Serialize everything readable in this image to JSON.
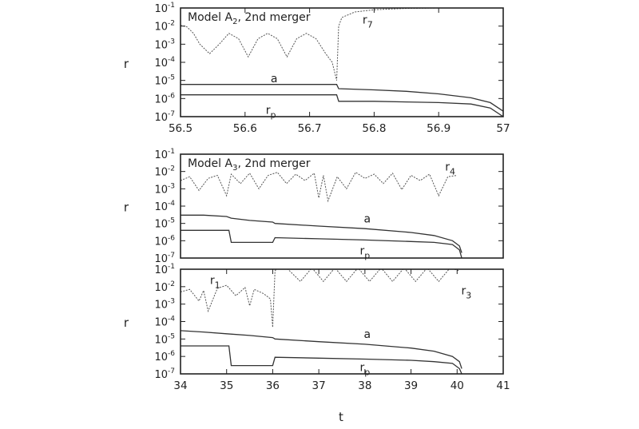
{
  "figure": {
    "xlabel": "t"
  },
  "chart_data": [
    {
      "type": "line",
      "title": "Model A",
      "title_sub": "2",
      "title_rest": ", 2nd merger",
      "ylabel": "r",
      "xlim": [
        56.5,
        57
      ],
      "xticks": [
        56.5,
        56.6,
        56.7,
        56.8,
        56.9,
        57
      ],
      "xtick_labels": [
        "56.5",
        "56.6",
        "56.7",
        "56.8",
        "56.9",
        "57"
      ],
      "ylim_log10": [
        -7,
        -1
      ],
      "ytick_exponents": [
        -1,
        -2,
        -3,
        -4,
        -5,
        -6,
        -7
      ],
      "ytick_base": "10",
      "y_scale": "log",
      "grid": false,
      "series": [
        {
          "name": "r7",
          "label_main": "r",
          "label_sub": "7",
          "style": "dashed",
          "x": [
            56.5,
            56.51,
            56.52,
            56.53,
            56.545,
            56.56,
            56.575,
            56.59,
            56.605,
            56.62,
            56.635,
            56.65,
            56.665,
            56.68,
            56.695,
            56.71,
            56.725,
            56.735,
            56.742,
            56.745,
            56.75,
            56.77,
            56.8,
            56.85,
            56.9,
            56.95,
            57
          ],
          "y": [
            0.011,
            0.009,
            0.004,
            0.001,
            0.0003,
            0.001,
            0.004,
            0.002,
            0.0002,
            0.002,
            0.004,
            0.002,
            0.0002,
            0.002,
            0.004,
            0.002,
            0.0003,
            0.0001,
            1e-05,
            0.01,
            0.03,
            0.06,
            0.08,
            0.095,
            0.1,
            0.1,
            0.1
          ]
        },
        {
          "name": "a",
          "label_main": "a",
          "label_sub": "",
          "style": "solid",
          "x": [
            56.5,
            56.6,
            56.7,
            56.742,
            56.745,
            56.8,
            56.85,
            56.9,
            56.95,
            56.98,
            57
          ],
          "y": [
            6e-06,
            6e-06,
            6e-06,
            6e-06,
            3.5e-06,
            3e-06,
            2.5e-06,
            1.8e-06,
            1.1e-06,
            6e-07,
            2e-07
          ]
        },
        {
          "name": "rp",
          "label_main": "r",
          "label_sub": "p",
          "style": "solid",
          "x": [
            56.5,
            56.6,
            56.7,
            56.742,
            56.745,
            56.8,
            56.85,
            56.9,
            56.95,
            56.98,
            57
          ],
          "y": [
            1.6e-06,
            1.6e-06,
            1.6e-06,
            1.6e-06,
            7e-07,
            7e-07,
            6.5e-07,
            6e-07,
            5e-07,
            3e-07,
            1e-07
          ]
        }
      ]
    },
    {
      "type": "line",
      "title": "Model A",
      "title_sub": "3",
      "title_rest": ", 2nd merger",
      "ylabel": "r",
      "xlim": [
        34,
        41
      ],
      "ylim_log10": [
        -7,
        -1
      ],
      "ytick_exponents": [
        -1,
        -2,
        -3,
        -4,
        -5,
        -6,
        -7
      ],
      "ytick_base": "10",
      "y_scale": "log",
      "grid": false,
      "series": [
        {
          "name": "r4",
          "label_main": "r",
          "label_sub": "4",
          "style": "dashed",
          "x": [
            34.0,
            34.2,
            34.4,
            34.6,
            34.8,
            35.0,
            35.1,
            35.3,
            35.5,
            35.7,
            35.9,
            36.1,
            36.3,
            36.5,
            36.7,
            36.9,
            37.0,
            37.1,
            37.2,
            37.4,
            37.6,
            37.8,
            38.0,
            38.2,
            38.4,
            38.6,
            38.8,
            39.0,
            39.2,
            39.4,
            39.6,
            39.8,
            40.0
          ],
          "y": [
            0.003,
            0.005,
            0.0008,
            0.004,
            0.006,
            0.0004,
            0.007,
            0.002,
            0.008,
            0.001,
            0.006,
            0.009,
            0.002,
            0.007,
            0.003,
            0.008,
            0.0003,
            0.006,
            0.0002,
            0.005,
            0.001,
            0.009,
            0.004,
            0.007,
            0.002,
            0.008,
            0.0009,
            0.006,
            0.003,
            0.007,
            0.0004,
            0.005,
            0.006
          ]
        },
        {
          "name": "a",
          "label_main": "a",
          "label_sub": "",
          "style": "solid",
          "x": [
            34.0,
            34.5,
            35.0,
            35.1,
            35.5,
            36.0,
            36.05,
            37.0,
            38.0,
            39.0,
            39.5,
            39.9,
            40.05,
            40.1
          ],
          "y": [
            3e-05,
            3e-05,
            2.5e-05,
            2e-05,
            1.5e-05,
            1.2e-05,
            1e-05,
            7e-06,
            5e-06,
            3e-06,
            2e-06,
            1e-06,
            5e-07,
            2e-07
          ]
        },
        {
          "name": "rp",
          "label_main": "r",
          "label_sub": "p",
          "style": "solid",
          "x": [
            34.0,
            35.05,
            35.1,
            36.0,
            36.05,
            37.0,
            38.0,
            39.0,
            39.5,
            39.9,
            40.05,
            40.1
          ],
          "y": [
            4e-06,
            4e-06,
            8e-07,
            8e-07,
            1.5e-06,
            1.3e-06,
            1.1e-06,
            9e-07,
            8e-07,
            6e-07,
            3e-07,
            1e-07
          ]
        }
      ]
    },
    {
      "type": "line",
      "ylabel": "r",
      "xlim": [
        34,
        41
      ],
      "xticks": [
        34,
        35,
        36,
        37,
        38,
        39,
        40,
        41
      ],
      "xtick_labels": [
        "34",
        "35",
        "36",
        "37",
        "38",
        "39",
        "40",
        "41"
      ],
      "ylim_log10": [
        -7,
        -1
      ],
      "ytick_exponents": [
        -1,
        -2,
        -3,
        -4,
        -5,
        -6,
        -7
      ],
      "ytick_base": "10",
      "y_scale": "log",
      "grid": false,
      "series": [
        {
          "name": "r1",
          "label_main": "r",
          "label_sub": "1",
          "style": "dashed",
          "x": [
            34.0,
            34.2,
            34.4,
            34.5,
            34.6,
            34.8,
            35.0,
            35.2,
            35.4,
            35.5,
            35.6,
            35.8,
            35.95,
            36.0
          ],
          "y": [
            0.005,
            0.007,
            0.0015,
            0.006,
            0.0004,
            0.008,
            0.012,
            0.003,
            0.009,
            0.0008,
            0.007,
            0.004,
            0.002,
            5e-05
          ]
        },
        {
          "name": "r3",
          "label_main": "r",
          "label_sub": "3",
          "style": "dashed",
          "x": [
            36.0,
            36.05,
            36.1,
            36.3,
            36.6,
            36.85,
            37.1,
            37.35,
            37.6,
            37.85,
            38.1,
            38.35,
            38.6,
            38.85,
            39.1,
            39.35,
            39.6,
            39.85,
            40.05
          ],
          "y": [
            5e-05,
            0.08,
            0.12,
            0.12,
            0.02,
            0.12,
            0.02,
            0.12,
            0.02,
            0.12,
            0.02,
            0.12,
            0.02,
            0.12,
            0.02,
            0.12,
            0.02,
            0.12,
            0.08
          ]
        },
        {
          "name": "a",
          "label_main": "a",
          "label_sub": "",
          "style": "solid",
          "x": [
            34.0,
            34.5,
            35.0,
            35.5,
            36.0,
            36.05,
            37.0,
            38.0,
            39.0,
            39.5,
            39.9,
            40.05,
            40.1
          ],
          "y": [
            3e-05,
            2.5e-05,
            2e-05,
            1.6e-05,
            1.2e-05,
            1e-05,
            7e-06,
            5e-06,
            3e-06,
            2e-06,
            1e-06,
            5e-07,
            2e-07
          ]
        },
        {
          "name": "rp",
          "label_main": "r",
          "label_sub": "p",
          "style": "solid",
          "x": [
            34.0,
            35.05,
            35.1,
            36.0,
            36.05,
            37.0,
            38.0,
            39.0,
            39.5,
            39.9,
            40.05,
            40.1
          ],
          "y": [
            4e-06,
            4e-06,
            3e-07,
            3e-07,
            9e-07,
            8e-07,
            7e-07,
            6e-07,
            5e-07,
            4e-07,
            2e-07,
            1e-07
          ]
        }
      ]
    }
  ]
}
